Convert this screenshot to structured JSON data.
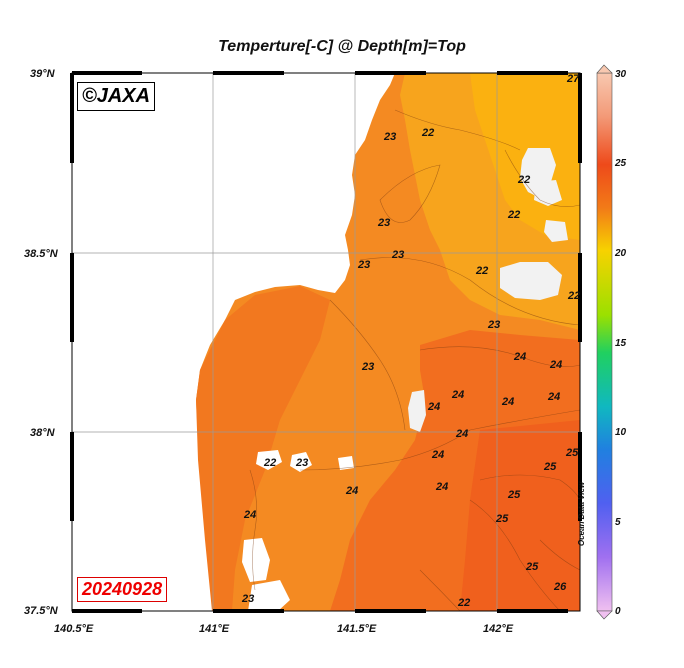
{
  "title": "Temperture[-C] @ Depth[m]=Top",
  "copyright": "©JAXA",
  "date_stamp": "20240928",
  "watermark": "Ocean Data View",
  "axes": {
    "lon_ticks": [
      "140.5°E",
      "141°E",
      "141.5°E",
      "142°E"
    ],
    "lat_ticks": [
      "39°N",
      "38.5°N",
      "38°N",
      "37.5°N"
    ]
  },
  "colorbar": {
    "ticks": [
      "30",
      "25",
      "20",
      "15",
      "10",
      "5",
      "0"
    ],
    "min": 0,
    "max": 30
  },
  "contour_labels": [
    "22",
    "22",
    "22",
    "22",
    "22",
    "23",
    "23",
    "23",
    "23",
    "23",
    "23",
    "23",
    "23",
    "24",
    "24",
    "24",
    "24",
    "24",
    "24",
    "24",
    "24",
    "24",
    "24",
    "25",
    "25",
    "25",
    "25",
    "25",
    "26",
    "27",
    "22",
    "24",
    "22"
  ],
  "colors": {
    "land": "#ffffff",
    "sea_warm": "#f3721f",
    "sea_mid": "#f79b22",
    "sea_cool": "#faa91e",
    "date_red": "#e00000"
  }
}
